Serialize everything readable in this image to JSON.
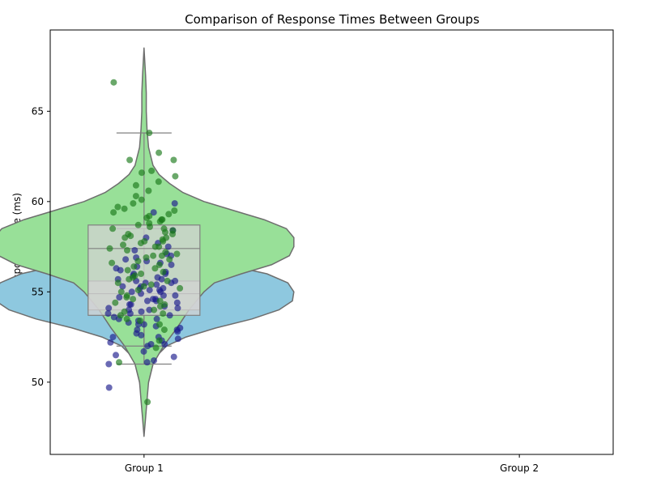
{
  "chart_data": {
    "type": "violin",
    "title": "Comparison of Response Times Between Groups",
    "xlabel": "",
    "ylabel": "Response Time (ms)",
    "categories": [
      "Group 1",
      "Group 2"
    ],
    "ylim": [
      46,
      69.5
    ],
    "yticks": [
      50,
      55,
      60,
      65
    ],
    "ytick_labels": [
      "50",
      "55",
      "60",
      "65"
    ],
    "grid": false,
    "legend": "none",
    "colors": {
      "violin_blue": "#8ec8df",
      "violin_green": "#98e098",
      "violin_edge": "#6e6e6e",
      "box_fill": "#d3d3d3",
      "box_edge": "#808080",
      "points_blue": "#1a1a8c",
      "points_green": "#1a7a1a"
    },
    "series": [
      {
        "color_key": "blue",
        "violin_profile": [
          [
            49.0,
            0.0
          ],
          [
            50.0,
            0.03
          ],
          [
            51.0,
            0.06
          ],
          [
            51.5,
            0.09
          ],
          [
            52.0,
            0.15
          ],
          [
            52.5,
            0.28
          ],
          [
            53.0,
            0.48
          ],
          [
            53.5,
            0.72
          ],
          [
            54.0,
            0.9
          ],
          [
            54.5,
            0.99
          ],
          [
            55.0,
            1.0
          ],
          [
            55.5,
            0.96
          ],
          [
            56.0,
            0.82
          ],
          [
            56.5,
            0.55
          ],
          [
            57.0,
            0.3
          ],
          [
            57.5,
            0.15
          ],
          [
            58.0,
            0.06
          ],
          [
            58.5,
            0.02
          ],
          [
            59.0,
            0.0
          ]
        ],
        "box": {
          "whisker_low": 51.0,
          "q1": 54.0,
          "median": 54.9,
          "q3": 55.6,
          "whisker_high": 58.5
        },
        "points": [
          49.7,
          51.0,
          51.1,
          51.2,
          51.4,
          51.5,
          51.7,
          52.0,
          52.1,
          52.1,
          52.2,
          52.3,
          52.4,
          52.5,
          52.5,
          52.6,
          52.7,
          52.8,
          52.9,
          52.9,
          53.0,
          53.1,
          53.2,
          53.2,
          53.3,
          53.4,
          53.5,
          53.5,
          53.6,
          53.7,
          53.8,
          53.8,
          53.9,
          54.0,
          54.0,
          54.1,
          54.1,
          54.2,
          54.3,
          54.3,
          54.4,
          54.5,
          54.5,
          54.6,
          54.6,
          54.7,
          54.8,
          54.8,
          54.9,
          55.0,
          55.0,
          55.1,
          55.1,
          55.2,
          55.2,
          55.3,
          55.3,
          55.4,
          55.5,
          55.5,
          55.6,
          55.6,
          55.7,
          55.7,
          55.8,
          55.9,
          56.0,
          56.0,
          56.1,
          56.2,
          56.3,
          56.4,
          56.5,
          56.6,
          56.7,
          56.8,
          56.9,
          57.0,
          57.1,
          57.3,
          57.5,
          57.7,
          58.0,
          58.4,
          59.4,
          59.9
        ]
      },
      {
        "color_key": "green",
        "violin_profile": [
          [
            47.0,
            0.0
          ],
          [
            48.0,
            0.01
          ],
          [
            49.0,
            0.02
          ],
          [
            50.0,
            0.03
          ],
          [
            51.0,
            0.06
          ],
          [
            52.0,
            0.13
          ],
          [
            53.0,
            0.22
          ],
          [
            54.0,
            0.3
          ],
          [
            55.0,
            0.4
          ],
          [
            55.5,
            0.47
          ],
          [
            56.0,
            0.65
          ],
          [
            56.5,
            0.85
          ],
          [
            57.0,
            0.97
          ],
          [
            57.5,
            1.0
          ],
          [
            58.0,
            1.0
          ],
          [
            58.5,
            0.95
          ],
          [
            59.0,
            0.8
          ],
          [
            59.5,
            0.6
          ],
          [
            60.0,
            0.4
          ],
          [
            60.5,
            0.26
          ],
          [
            61.0,
            0.17
          ],
          [
            61.5,
            0.1
          ],
          [
            62.0,
            0.06
          ],
          [
            63.0,
            0.03
          ],
          [
            64.0,
            0.02
          ],
          [
            65.0,
            0.015
          ],
          [
            66.0,
            0.015
          ],
          [
            67.0,
            0.01
          ],
          [
            68.5,
            0.0
          ]
        ],
        "box": {
          "whisker_low": 52.0,
          "q1": 53.7,
          "median": 57.4,
          "q3": 58.7,
          "whisker_high": 63.8
        },
        "points": [
          48.9,
          51.1,
          51.9,
          52.3,
          52.9,
          53.2,
          53.4,
          53.5,
          53.7,
          53.8,
          53.9,
          54.0,
          54.2,
          54.3,
          54.4,
          54.5,
          54.6,
          54.7,
          54.8,
          55.0,
          55.1,
          55.2,
          55.3,
          55.4,
          55.5,
          55.6,
          55.7,
          55.8,
          55.9,
          56.0,
          56.1,
          56.2,
          56.3,
          56.4,
          56.5,
          56.6,
          56.7,
          56.8,
          56.9,
          57.0,
          57.0,
          57.1,
          57.2,
          57.3,
          57.4,
          57.5,
          57.5,
          57.6,
          57.7,
          57.8,
          57.8,
          57.9,
          58.0,
          58.0,
          58.1,
          58.2,
          58.2,
          58.3,
          58.4,
          58.5,
          58.5,
          58.6,
          58.7,
          58.8,
          58.9,
          59.0,
          59.0,
          59.1,
          59.2,
          59.3,
          59.4,
          59.5,
          59.6,
          59.7,
          59.9,
          60.1,
          60.3,
          60.6,
          60.9,
          61.1,
          61.4,
          61.6,
          61.7,
          62.3,
          62.3,
          62.7,
          63.8,
          66.6
        ]
      }
    ]
  }
}
